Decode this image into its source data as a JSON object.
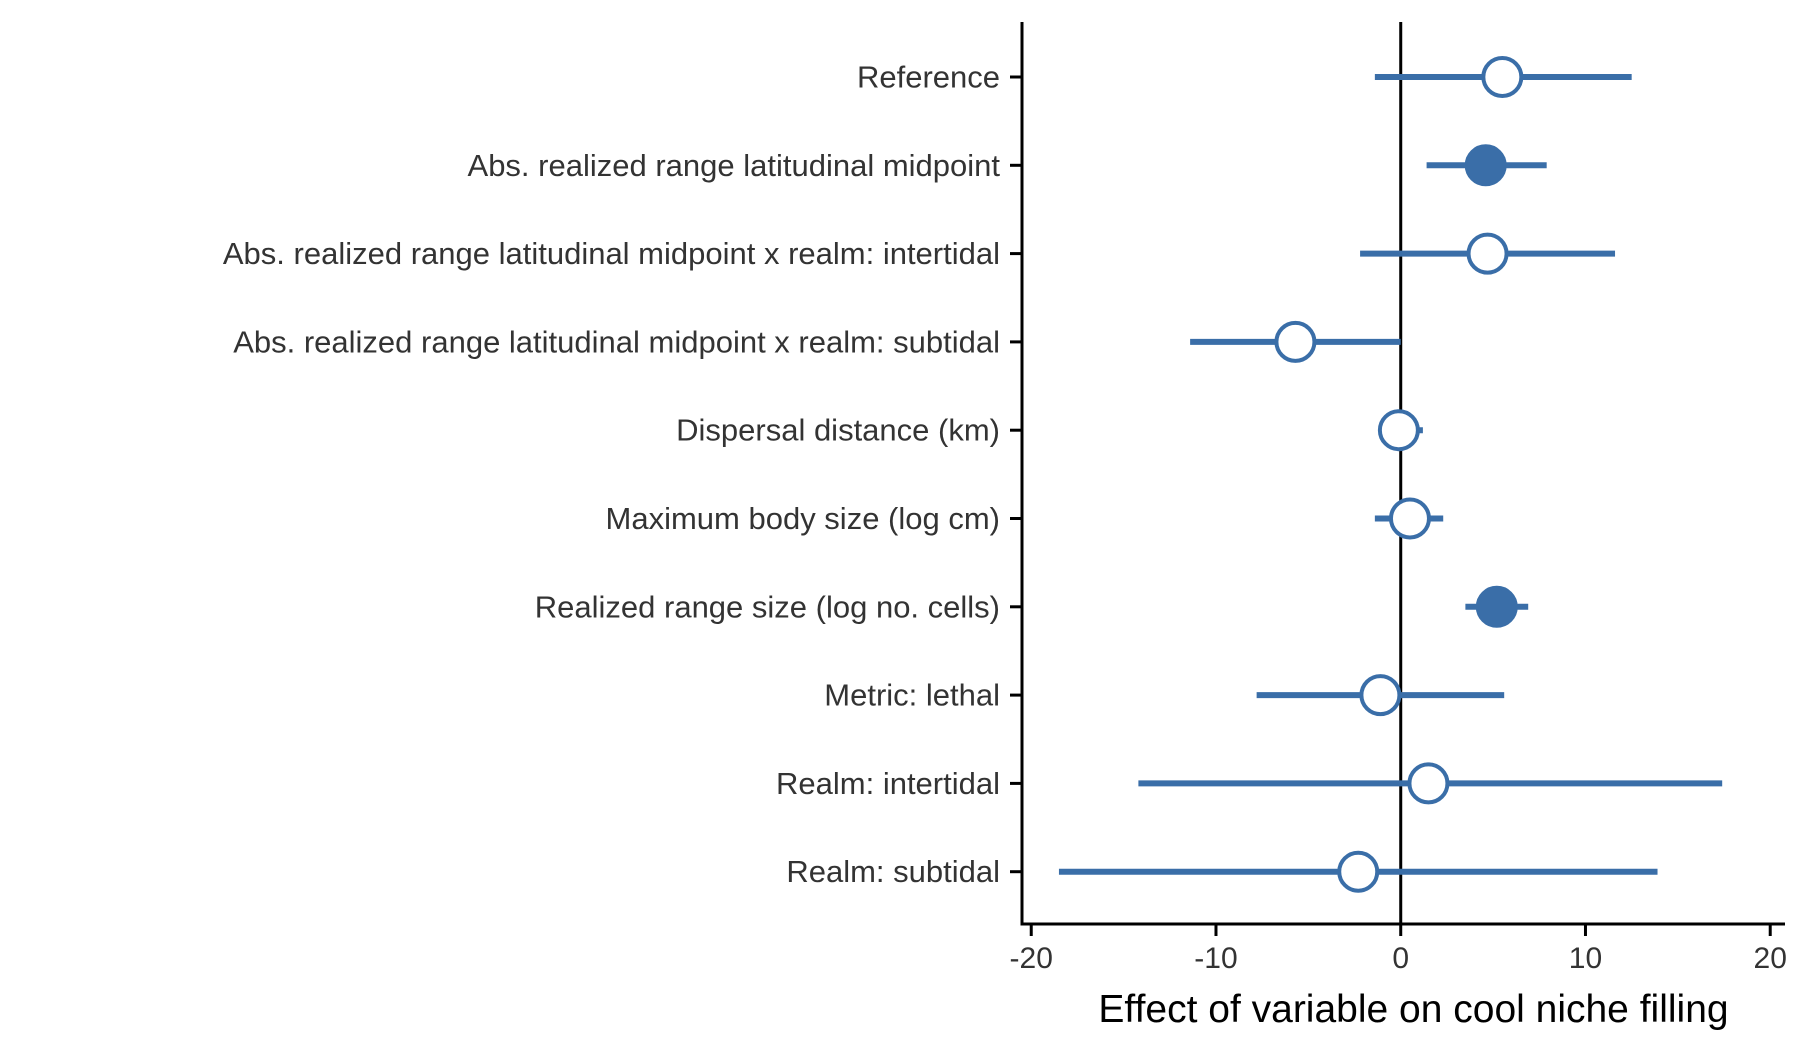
{
  "chart_data": {
    "type": "forest",
    "xlabel": "Effect of variable on cool niche filling",
    "xlim": [
      -20.5,
      20.8
    ],
    "xticks": [
      -20,
      -10,
      0,
      10,
      20
    ],
    "xtick_labels": [
      "-20",
      "-10",
      "0",
      "10",
      "20"
    ],
    "reference_line_x": 0,
    "grid": false,
    "legend": "none",
    "colors": {
      "point": "#3a6ea8",
      "open_fill": "#ffffff",
      "axis": "#000000"
    },
    "rows": [
      {
        "label": "Reference",
        "estimate": 5.5,
        "lower": -1.4,
        "upper": 12.5,
        "significant": false
      },
      {
        "label": "Abs. realized range latitudinal midpoint",
        "estimate": 4.6,
        "lower": 1.4,
        "upper": 7.9,
        "significant": true
      },
      {
        "label": "Abs. realized range latitudinal midpoint x realm: intertidal",
        "estimate": 4.7,
        "lower": -2.2,
        "upper": 11.6,
        "significant": false
      },
      {
        "label": "Abs. realized range latitudinal midpoint x realm: subtidal",
        "estimate": -5.7,
        "lower": -11.4,
        "upper": 0.0,
        "significant": false
      },
      {
        "label": "Dispersal distance (km)",
        "estimate": -0.1,
        "lower": -1.2,
        "upper": 1.2,
        "significant": false
      },
      {
        "label": "Maximum body size (log cm)",
        "estimate": 0.5,
        "lower": -1.4,
        "upper": 2.3,
        "significant": false
      },
      {
        "label": "Realized range size (log no. cells)",
        "estimate": 5.2,
        "lower": 3.5,
        "upper": 6.9,
        "significant": true
      },
      {
        "label": "Metric: lethal",
        "estimate": -1.1,
        "lower": -7.8,
        "upper": 5.6,
        "significant": false
      },
      {
        "label": "Realm: intertidal",
        "estimate": 1.5,
        "lower": -14.2,
        "upper": 17.4,
        "significant": false
      },
      {
        "label": "Realm: subtidal",
        "estimate": -2.3,
        "lower": -18.5,
        "upper": 13.9,
        "significant": false
      }
    ]
  }
}
